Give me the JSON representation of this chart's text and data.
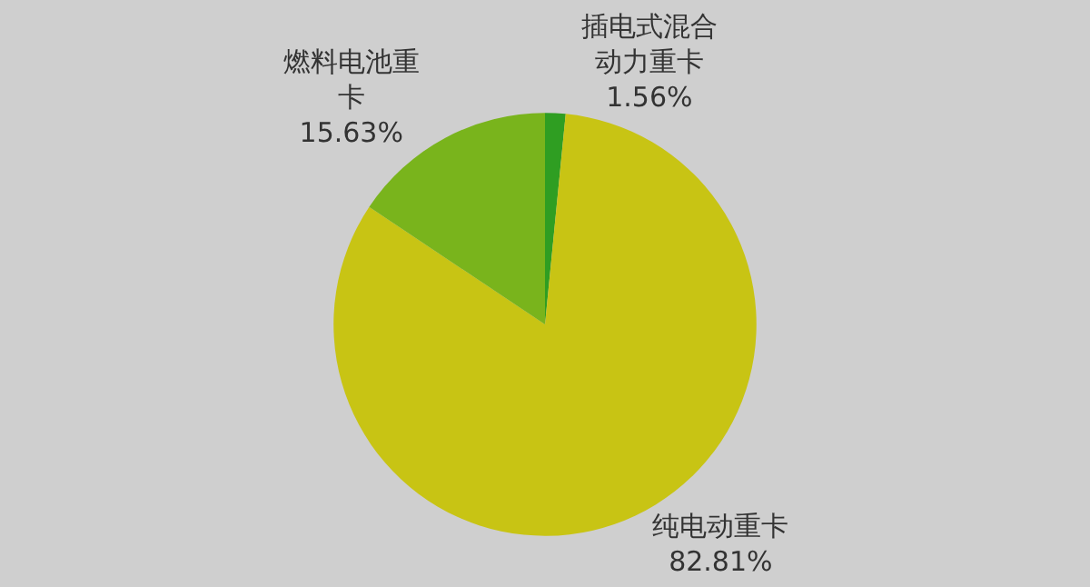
{
  "chart_data": {
    "type": "pie",
    "categories": [
      "插电式混合动力重卡",
      "纯电动重卡",
      "燃料电池重卡"
    ],
    "values": [
      1.56,
      82.81,
      15.63
    ],
    "value_labels": [
      "1.56%",
      "82.81%",
      "15.63%"
    ],
    "colors": [
      "#2f9e22",
      "#c8c414",
      "#79b41c"
    ],
    "legend": false
  }
}
